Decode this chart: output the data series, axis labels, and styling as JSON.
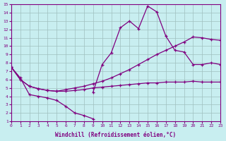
{
  "background_color": "#c8eef0",
  "grid_color": "#9fbfbf",
  "line_color": "#800080",
  "xlabel": "Windchill (Refroidissement éolien,°C)",
  "xlim": [
    0,
    23
  ],
  "ylim": [
    1,
    15
  ],
  "xticks": [
    0,
    1,
    2,
    3,
    4,
    5,
    6,
    7,
    8,
    9,
    10,
    11,
    12,
    13,
    14,
    15,
    16,
    17,
    18,
    19,
    20,
    21,
    22,
    23
  ],
  "yticks": [
    1,
    2,
    3,
    4,
    5,
    6,
    7,
    8,
    9,
    10,
    11,
    12,
    13,
    14,
    15
  ],
  "curves": [
    {
      "x": [
        0,
        1,
        2,
        3,
        4,
        5,
        6,
        7,
        8,
        9
      ],
      "y": [
        7.5,
        6.2,
        4.2,
        4.0,
        3.8,
        3.5,
        2.8,
        2.0,
        1.7,
        1.3
      ]
    },
    {
      "x": [
        0,
        1,
        2,
        3,
        4,
        5,
        6,
        7,
        8,
        9,
        10,
        11,
        12,
        13,
        14,
        15,
        16,
        17,
        18,
        19,
        20,
        21,
        22,
        23
      ],
      "y": [
        7.5,
        6.0,
        5.2,
        4.9,
        4.7,
        4.6,
        4.6,
        4.7,
        4.8,
        5.0,
        5.1,
        5.2,
        5.3,
        5.4,
        5.5,
        5.6,
        5.6,
        5.7,
        5.7,
        5.7,
        5.8,
        5.7,
        5.7,
        5.7
      ]
    },
    {
      "x": [
        9,
        10,
        11,
        12,
        13,
        14,
        15,
        16,
        17,
        18,
        19,
        20,
        21,
        22,
        23
      ],
      "y": [
        4.5,
        7.8,
        9.2,
        12.2,
        13.0,
        12.1,
        14.8,
        14.1,
        11.2,
        9.5,
        9.3,
        7.8,
        7.8,
        8.0,
        7.8
      ]
    },
    {
      "x": [
        0,
        1,
        2,
        3,
        4,
        5,
        6,
        7,
        8,
        9,
        10,
        11,
        12,
        13,
        14,
        15,
        16,
        17,
        18,
        19,
        20,
        21,
        22,
        23
      ],
      "y": [
        7.5,
        6.0,
        5.2,
        4.9,
        4.7,
        4.6,
        4.8,
        5.0,
        5.2,
        5.5,
        5.8,
        6.2,
        6.7,
        7.2,
        7.8,
        8.4,
        9.0,
        9.5,
        10.0,
        10.5,
        11.1,
        11.0,
        10.8,
        10.7
      ]
    }
  ]
}
